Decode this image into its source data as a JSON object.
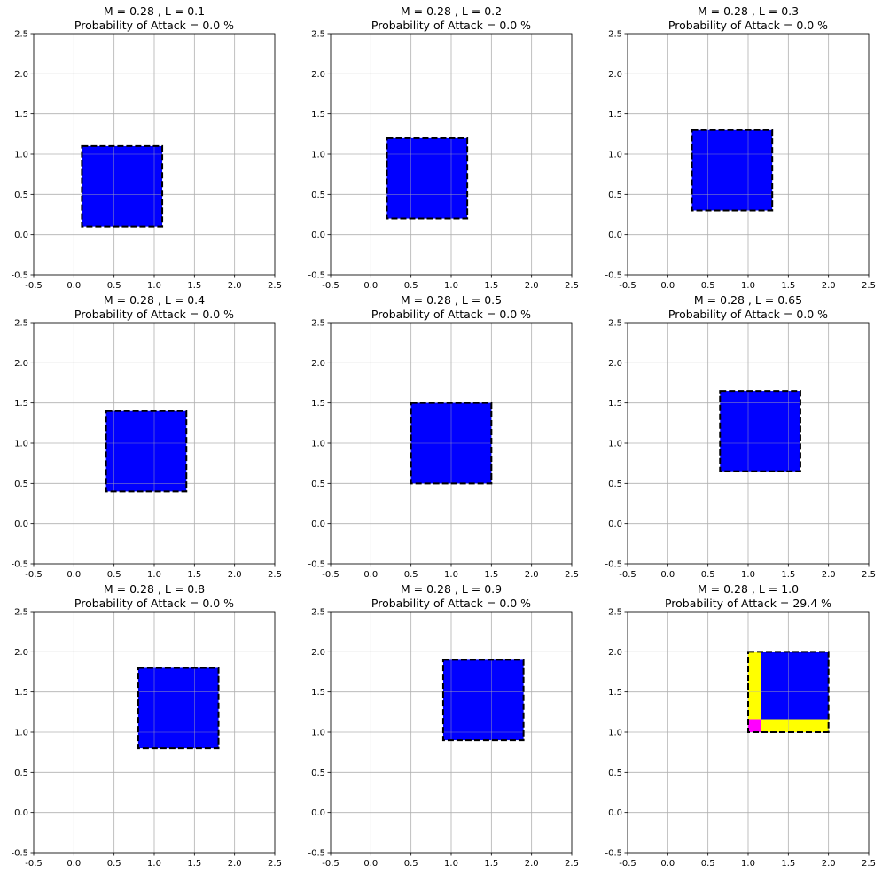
{
  "chart_data": [
    {
      "type": "area",
      "title": "M = 0.28 , L = 0.1",
      "subtitle": "Probability of Attack = 0.0 %",
      "xlim": [
        -0.5,
        2.5
      ],
      "ylim": [
        -0.5,
        2.5
      ],
      "ticks": [
        "-0.5",
        "0.0",
        "0.5",
        "1.0",
        "1.5",
        "2.0",
        "2.5"
      ],
      "grid": true,
      "regions": [
        {
          "name": "blue",
          "color": "#0000ff",
          "x": [
            0.1,
            1.1
          ],
          "y": [
            0.1,
            1.1
          ]
        }
      ],
      "outline": {
        "x": [
          0.1,
          1.1
        ],
        "y": [
          0.1,
          1.1
        ],
        "style": "dashed"
      }
    },
    {
      "type": "area",
      "title": "M = 0.28 , L = 0.2",
      "subtitle": "Probability of Attack = 0.0 %",
      "xlim": [
        -0.5,
        2.5
      ],
      "ylim": [
        -0.5,
        2.5
      ],
      "ticks": [
        "-0.5",
        "0.0",
        "0.5",
        "1.0",
        "1.5",
        "2.0",
        "2.5"
      ],
      "grid": true,
      "regions": [
        {
          "name": "blue",
          "color": "#0000ff",
          "x": [
            0.2,
            1.2
          ],
          "y": [
            0.2,
            1.2
          ]
        }
      ],
      "outline": {
        "x": [
          0.2,
          1.2
        ],
        "y": [
          0.2,
          1.2
        ],
        "style": "dashed"
      }
    },
    {
      "type": "area",
      "title": "M = 0.28 , L = 0.3",
      "subtitle": "Probability of Attack = 0.0 %",
      "xlim": [
        -0.5,
        2.5
      ],
      "ylim": [
        -0.5,
        2.5
      ],
      "ticks": [
        "-0.5",
        "0.0",
        "0.5",
        "1.0",
        "1.5",
        "2.0",
        "2.5"
      ],
      "grid": true,
      "regions": [
        {
          "name": "blue",
          "color": "#0000ff",
          "x": [
            0.3,
            1.3
          ],
          "y": [
            0.3,
            1.3
          ]
        }
      ],
      "outline": {
        "x": [
          0.3,
          1.3
        ],
        "y": [
          0.3,
          1.3
        ],
        "style": "dashed"
      }
    },
    {
      "type": "area",
      "title": "M = 0.28 , L = 0.4",
      "subtitle": "Probability of Attack = 0.0 %",
      "xlim": [
        -0.5,
        2.5
      ],
      "ylim": [
        -0.5,
        2.5
      ],
      "ticks": [
        "-0.5",
        "0.0",
        "0.5",
        "1.0",
        "1.5",
        "2.0",
        "2.5"
      ],
      "grid": true,
      "regions": [
        {
          "name": "blue",
          "color": "#0000ff",
          "x": [
            0.4,
            1.4
          ],
          "y": [
            0.4,
            1.4
          ]
        }
      ],
      "outline": {
        "x": [
          0.4,
          1.4
        ],
        "y": [
          0.4,
          1.4
        ],
        "style": "dashed"
      }
    },
    {
      "type": "area",
      "title": "M = 0.28 , L = 0.5",
      "subtitle": "Probability of Attack = 0.0 %",
      "xlim": [
        -0.5,
        2.5
      ],
      "ylim": [
        -0.5,
        2.5
      ],
      "ticks": [
        "-0.5",
        "0.0",
        "0.5",
        "1.0",
        "1.5",
        "2.0",
        "2.5"
      ],
      "grid": true,
      "regions": [
        {
          "name": "blue",
          "color": "#0000ff",
          "x": [
            0.5,
            1.5
          ],
          "y": [
            0.5,
            1.5
          ]
        }
      ],
      "outline": {
        "x": [
          0.5,
          1.5
        ],
        "y": [
          0.5,
          1.5
        ],
        "style": "dashed"
      }
    },
    {
      "type": "area",
      "title": "M = 0.28 , L = 0.65",
      "subtitle": "Probability of Attack = 0.0 %",
      "xlim": [
        -0.5,
        2.5
      ],
      "ylim": [
        -0.5,
        2.5
      ],
      "ticks": [
        "-0.5",
        "0.0",
        "0.5",
        "1.0",
        "1.5",
        "2.0",
        "2.5"
      ],
      "grid": true,
      "regions": [
        {
          "name": "blue",
          "color": "#0000ff",
          "x": [
            0.65,
            1.65
          ],
          "y": [
            0.65,
            1.65
          ]
        }
      ],
      "outline": {
        "x": [
          0.65,
          1.65
        ],
        "y": [
          0.65,
          1.65
        ],
        "style": "dashed"
      }
    },
    {
      "type": "area",
      "title": "M = 0.28 , L = 0.8",
      "subtitle": "Probability of Attack = 0.0 %",
      "xlim": [
        -0.5,
        2.5
      ],
      "ylim": [
        -0.5,
        2.5
      ],
      "ticks": [
        "-0.5",
        "0.0",
        "0.5",
        "1.0",
        "1.5",
        "2.0",
        "2.5"
      ],
      "grid": true,
      "regions": [
        {
          "name": "blue",
          "color": "#0000ff",
          "x": [
            0.8,
            1.8
          ],
          "y": [
            0.8,
            1.8
          ]
        }
      ],
      "outline": {
        "x": [
          0.8,
          1.8
        ],
        "y": [
          0.8,
          1.8
        ],
        "style": "dashed"
      }
    },
    {
      "type": "area",
      "title": "M = 0.28 , L = 0.9",
      "subtitle": "Probability of Attack = 0.0 %",
      "xlim": [
        -0.5,
        2.5
      ],
      "ylim": [
        -0.5,
        2.5
      ],
      "ticks": [
        "-0.5",
        "0.0",
        "0.5",
        "1.0",
        "1.5",
        "2.0",
        "2.5"
      ],
      "grid": true,
      "regions": [
        {
          "name": "blue",
          "color": "#0000ff",
          "x": [
            0.9,
            1.9
          ],
          "y": [
            0.9,
            1.9
          ]
        }
      ],
      "outline": {
        "x": [
          0.9,
          1.9
        ],
        "y": [
          0.9,
          1.9
        ],
        "style": "dashed"
      }
    },
    {
      "type": "area",
      "title": "M = 0.28 , L = 1.0",
      "subtitle": "Probability of Attack = 29.4 %",
      "xlim": [
        -0.5,
        2.5
      ],
      "ylim": [
        -0.5,
        2.5
      ],
      "ticks": [
        "-0.5",
        "0.0",
        "0.5",
        "1.0",
        "1.5",
        "2.0",
        "2.5"
      ],
      "grid": true,
      "regions": [
        {
          "name": "blue",
          "color": "#0000ff",
          "x": [
            1.16,
            2.0
          ],
          "y": [
            1.16,
            2.0
          ]
        },
        {
          "name": "yellow-left",
          "color": "#ffff00",
          "x": [
            1.0,
            1.16
          ],
          "y": [
            1.16,
            2.0
          ]
        },
        {
          "name": "yellow-bottom",
          "color": "#ffff00",
          "x": [
            1.16,
            2.0
          ],
          "y": [
            1.0,
            1.16
          ]
        },
        {
          "name": "magenta-corner",
          "color": "#ff00ff",
          "x": [
            1.0,
            1.16
          ],
          "y": [
            1.0,
            1.16
          ]
        }
      ],
      "outline": {
        "x": [
          1.0,
          2.0
        ],
        "y": [
          1.0,
          2.0
        ],
        "style": "dashed"
      }
    }
  ]
}
